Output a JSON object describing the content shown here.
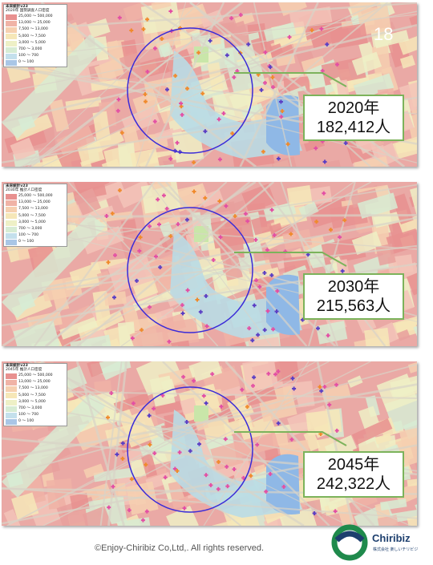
{
  "page_number": "18",
  "legend_title": "未来統計v23",
  "legend_ranges": [
    {
      "from": "25,000",
      "to": "500,000",
      "color": "#e8908f"
    },
    {
      "from": "13,000",
      "to": "25,000",
      "color": "#f0b3a6"
    },
    {
      "from": "7,500",
      "to": "13,000",
      "color": "#f6d0b0"
    },
    {
      "from": "5,000",
      "to": "7,500",
      "color": "#f6e7b8"
    },
    {
      "from": "3,000",
      "to": "5,000",
      "color": "#eef0c6"
    },
    {
      "from": "700",
      "to": "3,000",
      "color": "#d7ecd4"
    },
    {
      "from": "100",
      "to": "700",
      "color": "#c4e0ec"
    },
    {
      "from": "0",
      "to": "100",
      "color": "#a9c6e6"
    }
  ],
  "panels": [
    {
      "legend_subtitle": "2020年 国勢調査人口密度",
      "year_label": "2020年",
      "population_label": "182,412人"
    },
    {
      "legend_subtitle": "2030年 推計人口密度",
      "year_label": "2030年",
      "population_label": "215,563人"
    },
    {
      "legend_subtitle": "2045年 推計人口密度",
      "year_label": "2045年",
      "population_label": "242,322人"
    }
  ],
  "colors": {
    "circle": "#3a2bd8",
    "callout_border": "#7cb35b",
    "leader_line": "#7cb35b",
    "water": "#8fb8e6"
  },
  "copyright": "©Enjoy-Chiribiz Co,Ltd,. All rights reserved.",
  "logo": {
    "name": "Chiribiz",
    "subtitle": "株式会社 楽しいチリビジ"
  }
}
